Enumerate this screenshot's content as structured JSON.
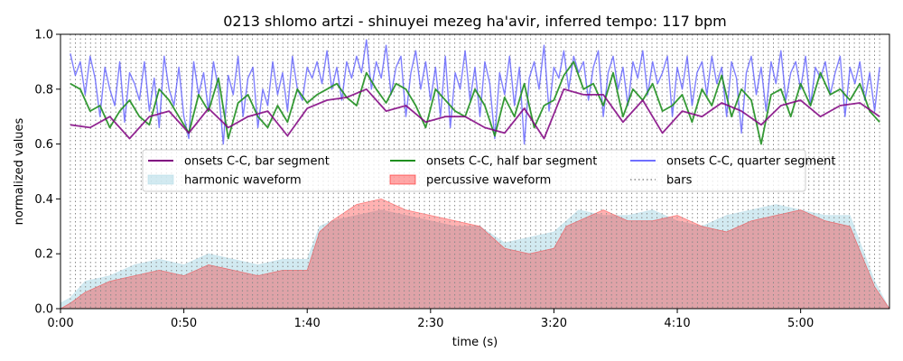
{
  "chart_data": {
    "type": "line",
    "title": "0213 shlomo artzi - shinuyei mezeg ha'avir, inferred tempo: 117 bpm",
    "xlabel": "time (s)",
    "ylabel": "normalized values",
    "xlim": [
      0,
      336
    ],
    "ylim": [
      0,
      1.0
    ],
    "x_ticks": [
      {
        "value": 0,
        "label": "0:00"
      },
      {
        "value": 50,
        "label": "0:50"
      },
      {
        "value": 100,
        "label": "1:40"
      },
      {
        "value": 150,
        "label": "2:30"
      },
      {
        "value": 200,
        "label": "3:20"
      },
      {
        "value": 250,
        "label": "4:10"
      },
      {
        "value": 300,
        "label": "5:00"
      }
    ],
    "y_ticks": [
      {
        "value": 0.0,
        "label": "0.0"
      },
      {
        "value": 0.2,
        "label": "0.2"
      },
      {
        "value": 0.4,
        "label": "0.4"
      },
      {
        "value": 0.6,
        "label": "0.6"
      },
      {
        "value": 0.8,
        "label": "0.8"
      },
      {
        "value": 1.0,
        "label": "1.0"
      }
    ],
    "grid": false,
    "legend": {
      "placement": "center",
      "entries": [
        {
          "label": "onsets C-C, bar segment",
          "kind": "line",
          "color": "#800080"
        },
        {
          "label": "onsets C-C, half bar segment",
          "kind": "line",
          "color": "#008000"
        },
        {
          "label": "onsets C-C, quarter segment",
          "kind": "line",
          "color": "#0000ff"
        },
        {
          "label": "harmonic waveform",
          "kind": "area",
          "color": "#add8e6"
        },
        {
          "label": "percussive waveform",
          "kind": "area",
          "color": "#ff0000"
        },
        {
          "label": "bars",
          "kind": "dotted",
          "color": "#808080"
        }
      ]
    },
    "bars": {
      "start": 4,
      "end": 334,
      "interval": 2.05
    },
    "series": [
      {
        "name": "onsets C-C, bar segment",
        "color": "#800080",
        "x": [
          4,
          12,
          20,
          28,
          36,
          44,
          52,
          60,
          68,
          76,
          84,
          92,
          100,
          108,
          116,
          124,
          132,
          140,
          148,
          156,
          164,
          172,
          180,
          188,
          196,
          204,
          212,
          220,
          228,
          236,
          244,
          252,
          260,
          268,
          276,
          284,
          292,
          300,
          308,
          316,
          324,
          332
        ],
        "y": [
          0.67,
          0.66,
          0.7,
          0.62,
          0.7,
          0.72,
          0.64,
          0.73,
          0.66,
          0.7,
          0.72,
          0.63,
          0.73,
          0.76,
          0.77,
          0.8,
          0.72,
          0.74,
          0.68,
          0.7,
          0.7,
          0.66,
          0.64,
          0.73,
          0.62,
          0.8,
          0.78,
          0.78,
          0.68,
          0.76,
          0.64,
          0.72,
          0.7,
          0.75,
          0.72,
          0.67,
          0.74,
          0.76,
          0.7,
          0.74,
          0.75,
          0.7
        ]
      },
      {
        "name": "onsets C-C, half bar segment",
        "color": "#008000",
        "x": [
          4,
          8,
          12,
          16,
          20,
          24,
          28,
          32,
          36,
          40,
          44,
          48,
          52,
          56,
          60,
          64,
          68,
          72,
          76,
          80,
          84,
          88,
          92,
          96,
          100,
          104,
          108,
          112,
          116,
          120,
          124,
          128,
          132,
          136,
          140,
          144,
          148,
          152,
          156,
          160,
          164,
          168,
          172,
          176,
          180,
          184,
          188,
          192,
          196,
          200,
          204,
          208,
          212,
          216,
          220,
          224,
          228,
          232,
          236,
          240,
          244,
          248,
          252,
          256,
          260,
          264,
          268,
          272,
          276,
          280,
          284,
          288,
          292,
          296,
          300,
          304,
          308,
          312,
          316,
          320,
          324,
          328,
          332
        ],
        "y": [
          0.82,
          0.8,
          0.72,
          0.74,
          0.66,
          0.72,
          0.76,
          0.7,
          0.67,
          0.8,
          0.76,
          0.7,
          0.64,
          0.78,
          0.72,
          0.84,
          0.62,
          0.75,
          0.78,
          0.7,
          0.66,
          0.74,
          0.68,
          0.8,
          0.75,
          0.78,
          0.8,
          0.82,
          0.77,
          0.74,
          0.86,
          0.8,
          0.75,
          0.82,
          0.8,
          0.74,
          0.66,
          0.8,
          0.76,
          0.72,
          0.7,
          0.8,
          0.74,
          0.63,
          0.77,
          0.7,
          0.82,
          0.66,
          0.74,
          0.76,
          0.85,
          0.9,
          0.8,
          0.82,
          0.74,
          0.86,
          0.7,
          0.8,
          0.76,
          0.82,
          0.72,
          0.74,
          0.78,
          0.68,
          0.8,
          0.74,
          0.85,
          0.7,
          0.8,
          0.76,
          0.6,
          0.78,
          0.8,
          0.7,
          0.82,
          0.74,
          0.86,
          0.78,
          0.8,
          0.76,
          0.82,
          0.72,
          0.68
        ]
      },
      {
        "name": "onsets C-C, quarter segment",
        "color": "#0000ff",
        "x": [
          4,
          6,
          8,
          10,
          12,
          14,
          16,
          18,
          20,
          22,
          24,
          26,
          28,
          30,
          32,
          34,
          36,
          38,
          40,
          42,
          44,
          46,
          48,
          50,
          52,
          54,
          56,
          58,
          60,
          62,
          64,
          66,
          68,
          70,
          72,
          74,
          76,
          78,
          80,
          82,
          84,
          86,
          88,
          90,
          92,
          94,
          96,
          98,
          100,
          102,
          104,
          106,
          108,
          110,
          112,
          114,
          116,
          118,
          120,
          122,
          124,
          126,
          128,
          130,
          132,
          134,
          136,
          138,
          140,
          142,
          144,
          146,
          148,
          150,
          152,
          154,
          156,
          158,
          160,
          162,
          164,
          166,
          168,
          170,
          172,
          174,
          176,
          178,
          180,
          182,
          184,
          186,
          188,
          190,
          192,
          194,
          196,
          198,
          200,
          202,
          204,
          206,
          208,
          210,
          212,
          214,
          216,
          218,
          220,
          222,
          224,
          226,
          228,
          230,
          232,
          234,
          236,
          238,
          240,
          242,
          244,
          246,
          248,
          250,
          252,
          254,
          256,
          258,
          260,
          262,
          264,
          266,
          268,
          270,
          272,
          274,
          276,
          278,
          280,
          282,
          284,
          286,
          288,
          290,
          292,
          294,
          296,
          298,
          300,
          302,
          304,
          306,
          308,
          310,
          312,
          314,
          316,
          318,
          320,
          322,
          324,
          326,
          328,
          330,
          332
        ],
        "y": [
          0.93,
          0.85,
          0.9,
          0.78,
          0.92,
          0.84,
          0.7,
          0.88,
          0.8,
          0.74,
          0.9,
          0.68,
          0.86,
          0.82,
          0.76,
          0.9,
          0.72,
          0.84,
          0.66,
          0.92,
          0.8,
          0.74,
          0.88,
          0.7,
          0.62,
          0.9,
          0.78,
          0.86,
          0.72,
          0.9,
          0.8,
          0.6,
          0.85,
          0.78,
          0.92,
          0.7,
          0.84,
          0.88,
          0.66,
          0.8,
          0.74,
          0.9,
          0.78,
          0.86,
          0.72,
          0.92,
          0.8,
          0.76,
          0.88,
          0.84,
          0.9,
          0.82,
          0.94,
          0.8,
          0.88,
          0.76,
          0.9,
          0.84,
          0.92,
          0.86,
          0.98,
          0.8,
          0.9,
          0.84,
          0.96,
          0.78,
          0.88,
          0.92,
          0.7,
          0.86,
          0.94,
          0.8,
          0.9,
          0.76,
          0.88,
          0.7,
          0.92,
          0.66,
          0.86,
          0.8,
          0.94,
          0.76,
          0.88,
          0.7,
          0.9,
          0.82,
          0.62,
          0.86,
          0.78,
          0.92,
          0.74,
          0.88,
          0.6,
          0.84,
          0.9,
          0.8,
          0.96,
          0.72,
          0.88,
          0.84,
          0.94,
          0.8,
          0.92,
          0.86,
          0.9,
          0.76,
          0.88,
          0.94,
          0.7,
          0.86,
          0.92,
          0.8,
          0.88,
          0.74,
          0.9,
          0.84,
          0.94,
          0.78,
          0.9,
          0.82,
          0.86,
          0.92,
          0.7,
          0.88,
          0.8,
          0.92,
          0.74,
          0.86,
          0.9,
          0.78,
          0.92,
          0.82,
          0.88,
          0.7,
          0.9,
          0.84,
          0.64,
          0.86,
          0.92,
          0.78,
          0.88,
          0.72,
          0.9,
          0.82,
          0.94,
          0.76,
          0.86,
          0.9,
          0.8,
          0.92,
          0.74,
          0.88,
          0.84,
          0.9,
          0.78,
          0.86,
          0.92,
          0.7,
          0.88,
          0.82,
          0.9,
          0.76,
          0.86,
          0.72,
          0.88
        ]
      },
      {
        "name": "harmonic waveform",
        "color": "#add8e6",
        "x": [
          0,
          4,
          10,
          20,
          30,
          40,
          50,
          60,
          70,
          80,
          90,
          100,
          105,
          110,
          120,
          130,
          140,
          150,
          160,
          170,
          180,
          190,
          200,
          210,
          220,
          230,
          240,
          250,
          260,
          270,
          280,
          290,
          300,
          310,
          320,
          330,
          336
        ],
        "y": [
          0.02,
          0.04,
          0.1,
          0.12,
          0.16,
          0.18,
          0.16,
          0.2,
          0.18,
          0.16,
          0.18,
          0.18,
          0.3,
          0.32,
          0.34,
          0.36,
          0.34,
          0.32,
          0.3,
          0.3,
          0.24,
          0.26,
          0.28,
          0.36,
          0.34,
          0.34,
          0.36,
          0.32,
          0.3,
          0.34,
          0.36,
          0.38,
          0.36,
          0.34,
          0.34,
          0.1,
          0.0
        ]
      },
      {
        "name": "percussive waveform",
        "color": "#ff0000",
        "x": [
          0,
          4,
          10,
          20,
          30,
          40,
          50,
          60,
          70,
          80,
          90,
          100,
          105,
          110,
          120,
          130,
          140,
          150,
          160,
          170,
          180,
          190,
          200,
          205,
          210,
          220,
          230,
          240,
          250,
          260,
          270,
          280,
          290,
          300,
          310,
          320,
          330,
          336
        ],
        "y": [
          0.0,
          0.02,
          0.06,
          0.1,
          0.12,
          0.14,
          0.12,
          0.16,
          0.14,
          0.12,
          0.14,
          0.14,
          0.28,
          0.32,
          0.38,
          0.4,
          0.36,
          0.34,
          0.32,
          0.3,
          0.22,
          0.2,
          0.22,
          0.3,
          0.32,
          0.36,
          0.32,
          0.32,
          0.34,
          0.3,
          0.28,
          0.32,
          0.34,
          0.36,
          0.32,
          0.3,
          0.08,
          0.0
        ]
      }
    ]
  }
}
